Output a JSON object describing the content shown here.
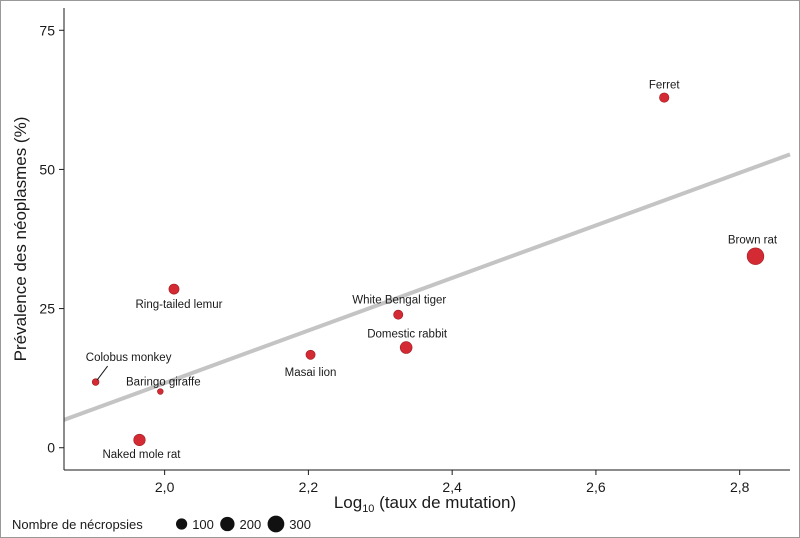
{
  "chart_data": {
    "type": "scatter",
    "xlabel_main": "Log",
    "xlabel_sub": "10",
    "xlabel_rest": " (taux de mutation)",
    "ylabel": "Prévalence des néoplasmes (%)",
    "xlim": [
      1.86,
      2.87
    ],
    "ylim": [
      -4,
      79
    ],
    "xticks": [
      2.0,
      2.2,
      2.4,
      2.6,
      2.8
    ],
    "xtick_labels": [
      "2,0",
      "2,2",
      "2,4",
      "2,6",
      "2,8"
    ],
    "yticks": [
      0,
      25,
      50,
      75
    ],
    "ytick_labels": [
      "0",
      "25",
      "50",
      "75"
    ],
    "grid": false,
    "point_color": "#d42a33",
    "trendline_color": "#c4c4c4",
    "trendline": {
      "x": [
        1.86,
        2.87
      ],
      "y": [
        5.0,
        52.7
      ]
    },
    "points": [
      {
        "label": "Ferret",
        "x": 2.695,
        "y": 62.9,
        "necropsies": 60
      },
      {
        "label": "Brown rat",
        "x": 2.822,
        "y": 34.4,
        "necropsies": 300
      },
      {
        "label": "Ring-tailed lemur",
        "x": 2.013,
        "y": 28.5,
        "necropsies": 75
      },
      {
        "label": "White Bengal tiger",
        "x": 2.325,
        "y": 23.9,
        "necropsies": 55
      },
      {
        "label": "Domestic rabbit",
        "x": 2.336,
        "y": 18.0,
        "necropsies": 120
      },
      {
        "label": "Masai lion",
        "x": 2.203,
        "y": 16.7,
        "necropsies": 55
      },
      {
        "label": "Colobus monkey",
        "x": 1.904,
        "y": 11.8,
        "necropsies": 18
      },
      {
        "label": "Baringo giraffe",
        "x": 1.994,
        "y": 10.1,
        "necropsies": 8
      },
      {
        "label": "Naked mole rat",
        "x": 1.965,
        "y": 1.4,
        "necropsies": 110
      }
    ],
    "legend": {
      "title": "Nombre de nécropsies",
      "position": "bottom-left",
      "entries": [
        {
          "label": "100",
          "value": 100
        },
        {
          "label": "200",
          "value": 200
        },
        {
          "label": "300",
          "value": 300
        }
      ]
    }
  }
}
